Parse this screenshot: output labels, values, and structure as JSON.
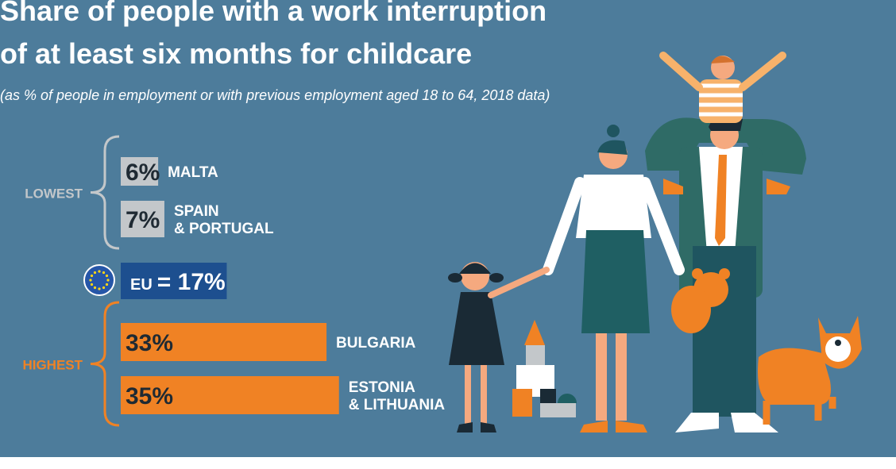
{
  "chart_data": {
    "type": "bar",
    "title": [
      "Share of people with a work interruption",
      "of at least six months for childcare"
    ],
    "subtitle": "(as % of people in employment or with previous employment aged 18 to 64, 2018 data)",
    "categories": [
      [
        "MALTA"
      ],
      [
        "SPAIN",
        "& PORTUGAL"
      ],
      [
        "EU"
      ],
      [
        "BULGARIA"
      ],
      [
        "ESTONIA",
        "& LITHUANIA"
      ]
    ],
    "values": [
      6,
      7,
      17,
      33,
      35
    ],
    "value_labels": [
      "6%",
      "7%",
      "= 17%",
      "33%",
      "35%"
    ],
    "colors": [
      "#c3c7ca",
      "#c3c7ca",
      "#1d4f8f",
      "#f08224",
      "#f08224"
    ],
    "groups": [
      {
        "label": "LOWEST",
        "color": "#c3c7ca"
      },
      {
        "label": "HIGHEST",
        "color": "#f08224"
      }
    ],
    "xlim": [
      0,
      100
    ]
  }
}
